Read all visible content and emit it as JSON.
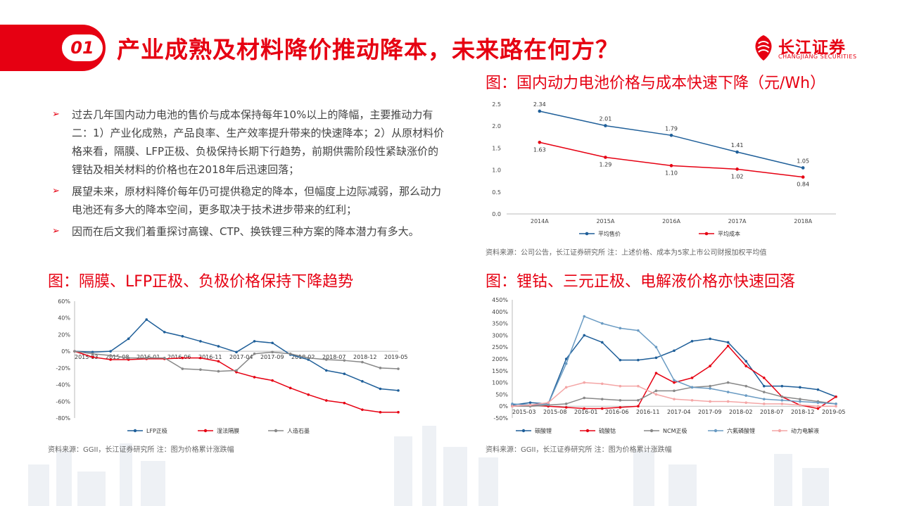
{
  "header": {
    "badge": "01",
    "title": "产业成熟及材料降价推动降本，未来路在何方？",
    "logo_cn": "长江证券",
    "logo_en": "CHANGJIANG SECURITIES",
    "accent_color": "#e60012"
  },
  "bullets": [
    "过去几年国内动力电池的售价与成本保持每年10%以上的降幅，主要推动力有二：1）产业化成熟，产品良率、生产效率提升带来的快速降本；2）从原材料价格来看，隔膜、LFP正极、负极保持长期下行趋势，前期供需阶段性紧缺涨价的锂钴及相关材料的价格也在2018年后迅速回落；",
    "展望未来，原材料降价每年仍可提供稳定的降本，但幅度上边际减弱，那么动力电池还有多大的降本空间，更多取决于技术进步带来的红利；",
    "因而在后文我们着重探讨高镍、CTP、换铁锂三种方案的降本潜力有多大。"
  ],
  "sections": {
    "top_right_title": "图：国内动力电池价格与成本快速下降（元/Wh）",
    "top_right_source": "资料来源：公司公告，长江证券研究所   注：上述价格、成本为5家上市公司财报加权平均值",
    "bottom_left_title": "图：隔膜、LFP正极、负极价格保持下降趋势",
    "bottom_left_source": "资料来源：GGII，长江证券研究所   注：图为价格累计涨跌幅",
    "bottom_right_title": "图：锂钴、三元正极、电解液价格亦快速回落",
    "bottom_right_source": "资料来源：GGII，长江证券研究所   注：图为价格累计涨跌幅"
  },
  "chart_data": [
    {
      "type": "line",
      "categories": [
        "2014A",
        "2015A",
        "2016A",
        "2017A",
        "2018A"
      ],
      "ylim": [
        0,
        2.5
      ],
      "yticks": [
        "0.0",
        "0.5",
        "1.0",
        "1.5",
        "2.0",
        "2.5"
      ],
      "series": [
        {
          "name": "平均售价",
          "color": "#1f5f99",
          "values": [
            2.34,
            2.01,
            1.79,
            1.41,
            1.05
          ],
          "labels": [
            "2.34",
            "2.01",
            "1.79",
            "1.41",
            "1.05"
          ]
        },
        {
          "name": "平均成本",
          "color": "#e60012",
          "values": [
            1.63,
            1.29,
            1.1,
            1.02,
            0.84
          ],
          "labels": [
            "1.63",
            "1.29",
            "1.10",
            "1.02",
            "0.84"
          ]
        }
      ],
      "legend": "bottom",
      "grid": false
    },
    {
      "type": "line",
      "x_tick_labels": [
        "2015-03",
        "2015-08",
        "2016-01",
        "2016-06",
        "2016-11",
        "2017-04",
        "2017-09",
        "2018-02",
        "2018-07",
        "2018-12",
        "2019-05"
      ],
      "ylim": [
        -80,
        60
      ],
      "yticks": [
        "60%",
        "40%",
        "20%",
        "0%",
        "-20%",
        "-40%",
        "-60%",
        "-80%"
      ],
      "series": [
        {
          "name": "LFP正极",
          "color": "#1f5f99",
          "values": [
            0,
            -1,
            0,
            15,
            38,
            23,
            18,
            12,
            6,
            -1,
            12,
            10,
            -4,
            -10,
            -23,
            -27,
            -36,
            -45,
            -47
          ]
        },
        {
          "name": "湿法隔膜",
          "color": "#e60012",
          "values": [
            0,
            -7,
            -10,
            -10,
            -9,
            -9,
            -8,
            -8,
            -12,
            -25,
            -31,
            -35,
            -44,
            -52,
            -59,
            -62,
            -70,
            -73,
            -73
          ]
        },
        {
          "name": "人造石墨",
          "color": "#888888",
          "values": [
            0,
            -3,
            -5,
            -8,
            -8,
            -8,
            -21,
            -22,
            -24,
            -23,
            -3,
            -1,
            -3,
            -8,
            -10,
            -11,
            -13,
            -20,
            -21
          ]
        }
      ],
      "legend": "bottom",
      "grid": false
    },
    {
      "type": "line",
      "x_tick_labels": [
        "2015-03",
        "2015-08",
        "2016-01",
        "2016-06",
        "2016-11",
        "2017-04",
        "2017-09",
        "2018-02",
        "2018-07",
        "2018-12",
        "2019-05"
      ],
      "ylim": [
        -50,
        450
      ],
      "yticks": [
        "450%",
        "400%",
        "350%",
        "300%",
        "250%",
        "200%",
        "150%",
        "100%",
        "50%",
        "0%",
        "-50%"
      ],
      "series": [
        {
          "name": "碳酸锂",
          "color": "#1f5f99",
          "values": [
            5,
            15,
            10,
            200,
            300,
            270,
            195,
            195,
            205,
            235,
            275,
            285,
            270,
            190,
            85,
            85,
            80,
            70,
            40
          ]
        },
        {
          "name": "硫酸钴",
          "color": "#e60012",
          "values": [
            0,
            5,
            0,
            -5,
            -10,
            -10,
            -5,
            0,
            140,
            100,
            120,
            170,
            255,
            170,
            120,
            40,
            5,
            -10,
            40
          ]
        },
        {
          "name": "NCM正极",
          "color": "#888888",
          "values": [
            0,
            0,
            5,
            10,
            35,
            30,
            25,
            25,
            65,
            65,
            80,
            85,
            100,
            85,
            60,
            40,
            30,
            20,
            10
          ]
        },
        {
          "name": "六氟磷酸锂",
          "color": "#6a9bc3",
          "values": [
            10,
            5,
            10,
            180,
            380,
            350,
            330,
            320,
            250,
            110,
            80,
            75,
            60,
            45,
            30,
            25,
            20,
            15,
            10
          ]
        },
        {
          "name": "动力电解液",
          "color": "#f4a6a6",
          "values": [
            0,
            5,
            15,
            80,
            100,
            95,
            85,
            85,
            50,
            30,
            25,
            20,
            20,
            15,
            10,
            10,
            5,
            0,
            0
          ]
        }
      ],
      "legend": "bottom",
      "grid": false
    }
  ]
}
